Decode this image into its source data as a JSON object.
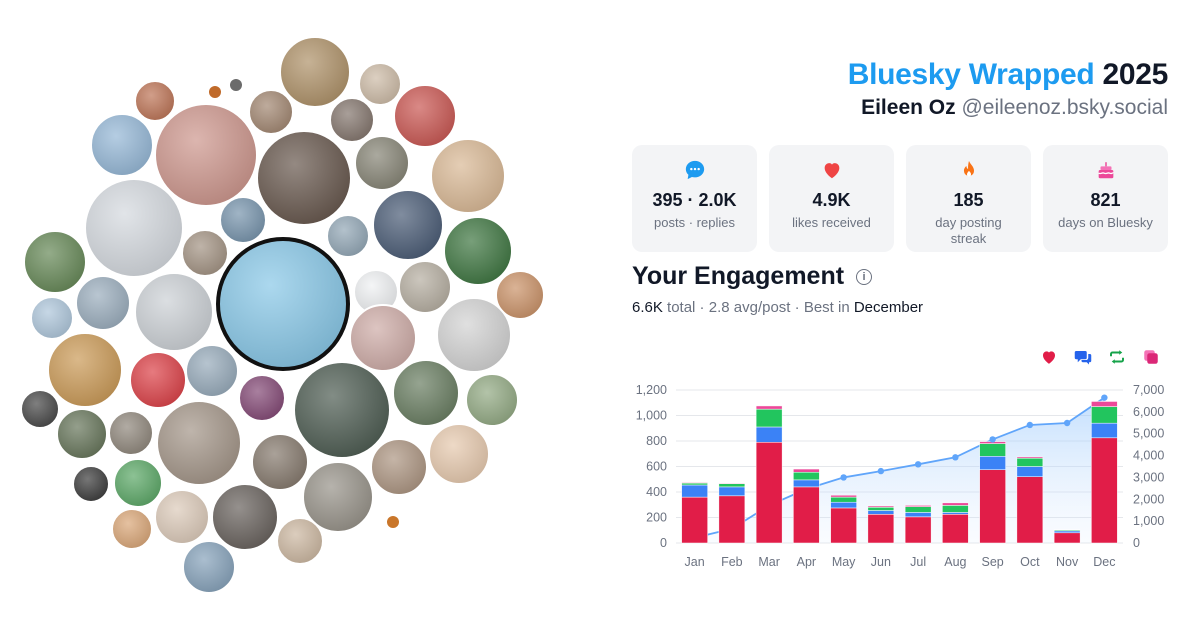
{
  "header": {
    "brand": "Bluesky Wrapped",
    "year": "2025",
    "name": "Eileen Oz",
    "handle": "@eileenoz.bsky.social"
  },
  "stats": [
    {
      "icon": "speech-bubble-icon",
      "color": "#1d9bf0",
      "value": "395 · 2.0K",
      "label": "posts · replies"
    },
    {
      "icon": "heart-icon",
      "color": "#ef4444",
      "value": "4.9K",
      "label": "likes received"
    },
    {
      "icon": "flame-icon",
      "color": "#f97316",
      "value": "185",
      "label": "day posting streak"
    },
    {
      "icon": "cake-icon",
      "color": "#ec4899",
      "value": "821",
      "label": "days on Bluesky"
    }
  ],
  "engagement": {
    "title": "Your Engagement",
    "total": "6.6K",
    "total_word": "total",
    "avg": "2.8 avg/post",
    "best_prefix": "Best in",
    "best_month": "December"
  },
  "legend_icons": [
    {
      "icon": "heart-icon",
      "color": "#e11d48"
    },
    {
      "icon": "reply-icon",
      "color": "#2563eb"
    },
    {
      "icon": "repost-icon",
      "color": "#16a34a"
    },
    {
      "icon": "quote-icon",
      "color": "#db2777"
    }
  ],
  "chart_data": {
    "type": "bar",
    "stacked": true,
    "categories": [
      "Jan",
      "Feb",
      "Mar",
      "Apr",
      "May",
      "Jun",
      "Jul",
      "Aug",
      "Sep",
      "Oct",
      "Nov",
      "Dec"
    ],
    "series": [
      {
        "color": "#e11d48",
        "values": [
          360,
          370,
          790,
          440,
          275,
          225,
          205,
          225,
          575,
          520,
          80,
          825
        ]
      },
      {
        "color": "#3b82f6",
        "values": [
          95,
          70,
          120,
          55,
          45,
          30,
          35,
          15,
          105,
          80,
          15,
          115
        ]
      },
      {
        "color": "#22c55e",
        "values": [
          15,
          25,
          140,
          60,
          40,
          25,
          45,
          55,
          100,
          65,
          8,
          130
        ]
      },
      {
        "color": "#ec4899",
        "values": [
          5,
          5,
          25,
          25,
          15,
          10,
          10,
          20,
          15,
          10,
          2,
          40
        ]
      }
    ],
    "line": {
      "color": "#60a5fa",
      "axis": "right",
      "values": [
        240,
        650,
        1720,
        2470,
        3000,
        3290,
        3600,
        3920,
        4740,
        5400,
        5490,
        6650
      ]
    },
    "ylim": [
      0,
      1200
    ],
    "yticks": [
      "0",
      "200",
      "400",
      "600",
      "800",
      "1,000",
      "1,200"
    ],
    "y2lim": [
      0,
      7000
    ],
    "y2ticks": [
      "0",
      "1,000",
      "2,000",
      "3,000",
      "4,000",
      "5,000",
      "6,000",
      "7,000"
    ],
    "grid": true
  }
}
